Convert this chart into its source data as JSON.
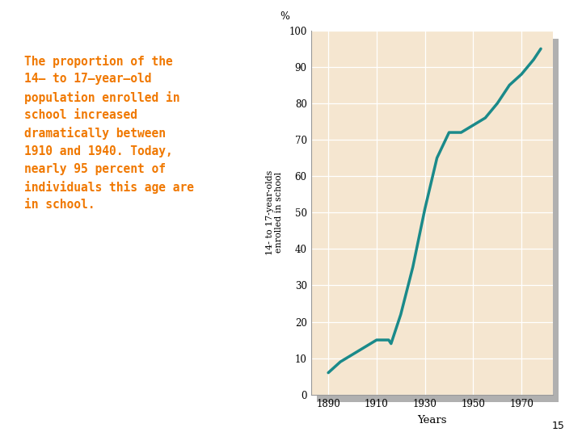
{
  "years": [
    1890,
    1895,
    1900,
    1905,
    1910,
    1915,
    1916,
    1920,
    1925,
    1930,
    1935,
    1940,
    1945,
    1950,
    1955,
    1960,
    1965,
    1970,
    1975,
    1978
  ],
  "values": [
    6,
    9,
    11,
    13,
    15,
    15,
    14,
    22,
    35,
    51,
    65,
    72,
    72,
    74,
    76,
    80,
    85,
    88,
    92,
    95
  ],
  "line_color": "#1a8a8a",
  "line_width": 2.5,
  "plot_bg": "#f5e6d0",
  "xlabel": "Years",
  "ylabel": "14- to 17-year-olds\nenrolled in school",
  "percent_label": "%",
  "yticks": [
    0,
    10,
    20,
    30,
    40,
    50,
    60,
    70,
    80,
    90,
    100
  ],
  "xticks": [
    1890,
    1910,
    1930,
    1950,
    1970
  ],
  "xlim": [
    1883,
    1983
  ],
  "ylim": [
    0,
    100
  ],
  "annotation_text": "The proportion of the\n14– to 17–year–old\npopulation enrolled in\nschool increased\ndramatically between\n1910 and 1940. Today,\nnearly 95 percent of\nindividuals this age are\nin school.",
  "annotation_color": "#f07800",
  "annotation_fontsize": 10.5,
  "page_number": "15",
  "shadow_color": "#b0b0b0",
  "fig_width": 7.2,
  "fig_height": 5.4,
  "fig_dpi": 100
}
